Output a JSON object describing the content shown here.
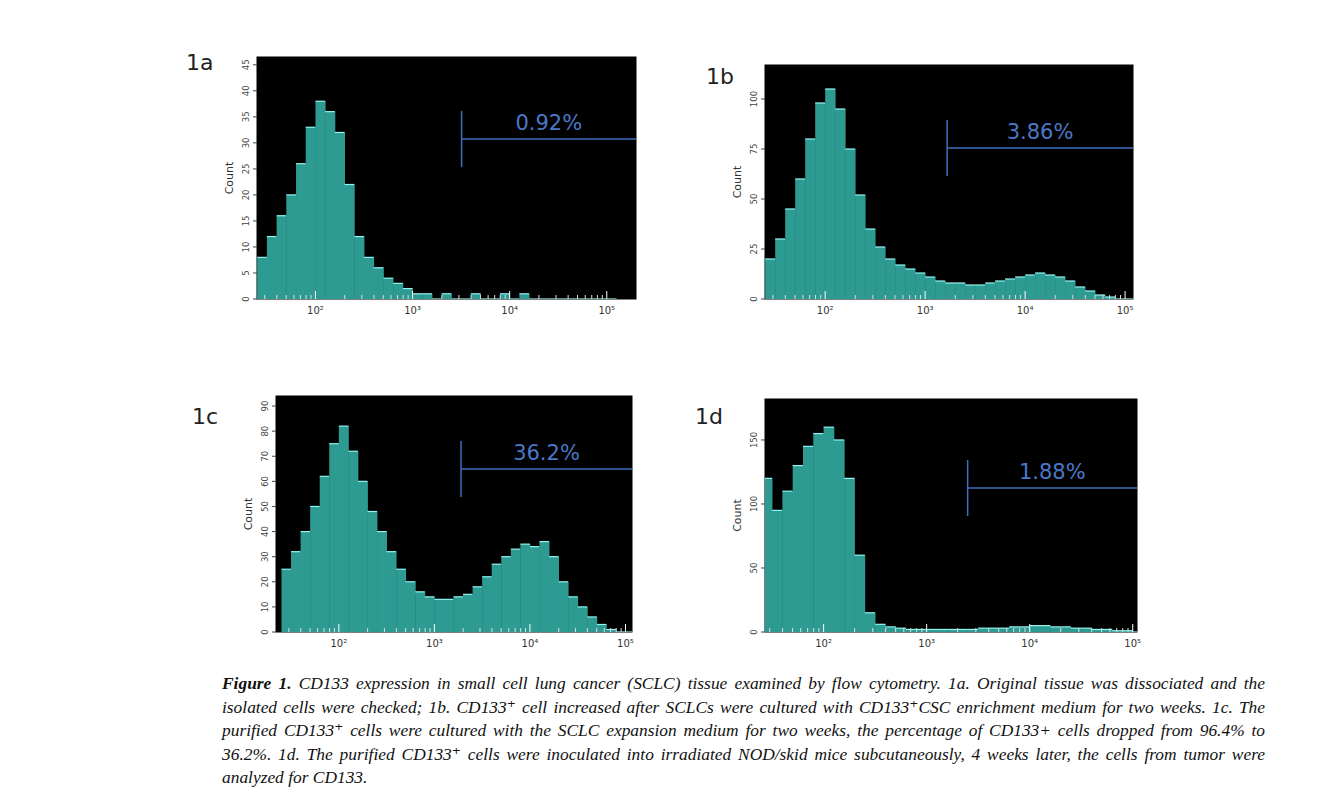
{
  "chart_data": [
    {
      "type": "histogram",
      "title": "1a",
      "y_label": "Count",
      "log": "x",
      "color": "#2e9b93",
      "xlim": [
        25,
        200000
      ],
      "xticks": [
        {
          "value": 100,
          "label": "10²"
        },
        {
          "value": 1000,
          "label": "10³"
        },
        {
          "value": 10000,
          "label": "10⁴"
        },
        {
          "value": 100000,
          "label": "10⁵"
        }
      ],
      "ylim": [
        0,
        46.5
      ],
      "yticks": [
        0,
        5,
        10,
        15,
        20,
        25,
        30,
        35,
        40,
        45
      ],
      "bins": [
        25.1,
        31.6,
        39.8,
        50.1,
        63.1,
        79.4,
        100,
        125.9,
        158.5,
        199.5,
        251.2,
        316.2,
        398.1,
        501.2,
        631,
        794.3,
        1000,
        1259,
        1585,
        1995,
        2512,
        3162,
        3981,
        5012,
        6310,
        7943,
        10000,
        12589,
        15849,
        19953,
        25119,
        31623,
        39811,
        50119,
        63096,
        79433,
        100000,
        125893
      ],
      "counts": [
        8,
        12,
        16,
        20,
        26,
        33,
        38,
        36,
        32,
        22,
        12,
        8,
        6,
        4,
        3,
        2,
        1,
        1,
        0,
        1,
        0,
        0,
        1,
        0,
        0,
        1,
        0,
        1,
        0,
        0,
        0,
        0,
        0,
        0,
        0,
        0,
        0
      ],
      "gate": {
        "label": "0.92%",
        "x": [
          3200,
          200000
        ]
      }
    },
    {
      "type": "histogram",
      "title": "1b",
      "y_label": "Count",
      "log": "x",
      "color": "#2e9b93",
      "xlim": [
        25,
        120000
      ],
      "xticks": [
        {
          "value": 100,
          "label": "10²"
        },
        {
          "value": 1000,
          "label": "10³"
        },
        {
          "value": 10000,
          "label": "10⁴"
        },
        {
          "value": 100000,
          "label": "10⁵"
        }
      ],
      "ylim": [
        0,
        117
      ],
      "yticks": [
        0,
        25,
        50,
        75,
        100
      ],
      "bins": [
        25.1,
        31.6,
        39.8,
        50.1,
        63.1,
        79.4,
        100,
        125.9,
        158.5,
        199.5,
        251.2,
        316.2,
        398.1,
        501.2,
        631,
        794.3,
        1000,
        1259,
        1585,
        1995,
        2512,
        3162,
        3981,
        5012,
        6310,
        7943,
        10000,
        12589,
        15849,
        19953,
        25119,
        31623,
        39811,
        50119,
        63096,
        79433,
        100000,
        125893
      ],
      "counts": [
        20,
        30,
        45,
        60,
        80,
        98,
        105,
        95,
        75,
        52,
        35,
        26,
        20,
        17,
        15,
        13,
        11,
        9,
        8,
        8,
        7,
        7,
        8,
        9,
        10,
        11,
        12,
        13,
        12,
        11,
        9,
        6,
        4,
        2,
        1,
        0,
        0
      ],
      "gate": {
        "label": "3.86%",
        "x": [
          1660,
          120000
        ]
      }
    },
    {
      "type": "histogram",
      "title": "1c",
      "y_label": "Count",
      "log": "x",
      "color": "#2e9b93",
      "xlim": [
        22,
        117000
      ],
      "xticks": [
        {
          "value": 100,
          "label": "10²"
        },
        {
          "value": 1000,
          "label": "10³"
        },
        {
          "value": 10000,
          "label": "10⁴"
        },
        {
          "value": 100000,
          "label": "10⁵"
        }
      ],
      "ylim": [
        0,
        94
      ],
      "yticks": [
        0,
        10,
        20,
        30,
        40,
        50,
        60,
        70,
        80,
        90
      ],
      "bins": [
        25.1,
        31.6,
        39.8,
        50.1,
        63.1,
        79.4,
        100,
        125.9,
        158.5,
        199.5,
        251.2,
        316.2,
        398.1,
        501.2,
        631,
        794.3,
        1000,
        1259,
        1585,
        1995,
        2512,
        3162,
        3981,
        5012,
        6310,
        7943,
        10000,
        12589,
        15849,
        19953,
        25119,
        31623,
        39811,
        50119,
        63096,
        79433,
        100000,
        125893
      ],
      "counts": [
        25,
        32,
        40,
        50,
        62,
        75,
        82,
        72,
        60,
        48,
        40,
        32,
        25,
        20,
        16,
        14,
        13,
        13,
        14,
        15,
        18,
        22,
        27,
        30,
        33,
        35,
        34,
        36,
        30,
        20,
        14,
        10,
        6,
        3,
        1,
        0,
        0
      ],
      "gate": {
        "label": "36.2%",
        "x": [
          1900,
          117000
        ]
      }
    },
    {
      "type": "histogram",
      "title": "1d",
      "y_label": "Count",
      "log": "x",
      "color": "#2e9b93",
      "xlim": [
        27,
        110000
      ],
      "xticks": [
        {
          "value": 100,
          "label": "10²"
        },
        {
          "value": 1000,
          "label": "10³"
        },
        {
          "value": 10000,
          "label": "10⁴"
        },
        {
          "value": 100000,
          "label": "10⁵"
        }
      ],
      "ylim": [
        0,
        182
      ],
      "yticks": [
        0,
        50,
        100,
        150
      ],
      "bins": [
        25.1,
        31.6,
        39.8,
        50.1,
        63.1,
        79.4,
        100,
        125.9,
        158.5,
        199.5,
        251.2,
        316.2,
        398.1,
        501.2,
        631,
        794.3,
        1000,
        1259,
        1585,
        1995,
        2512,
        3162,
        3981,
        5012,
        6310,
        7943,
        10000,
        12589,
        15849,
        19953,
        25119,
        31623,
        39811,
        50119,
        63096,
        79433,
        100000,
        125893
      ],
      "counts": [
        120,
        95,
        110,
        130,
        145,
        155,
        160,
        150,
        120,
        60,
        15,
        6,
        4,
        3,
        2,
        2,
        2,
        2,
        2,
        2,
        2,
        3,
        3,
        3,
        4,
        4,
        5,
        5,
        4,
        4,
        3,
        3,
        2,
        2,
        1,
        1,
        0
      ],
      "gate": {
        "label": "1.88%",
        "x": [
          2500,
          110000
        ]
      }
    }
  ],
  "caption": {
    "label": "Figure 1.",
    "text": "CD133 expression in small cell lung cancer (SCLC) tissue examined by flow cytometry. 1a. Original tissue was dissociated and the isolated cells were checked; 1b. CD133⁺ cell increased after SCLCs were cultured with CD133⁺CSC enrichment medium for two weeks. 1c. The purified CD133⁺ cells were cultured with the SCLC expansion medium for two weeks, the percentage of CD133+ cells dropped from 96.4% to 36.2%. 1d. The purified CD133⁺ cells were inoculated into irradiated NOD/skid mice subcutaneously, 4 weeks later, the cells from tumor were analyzed for CD133."
  }
}
